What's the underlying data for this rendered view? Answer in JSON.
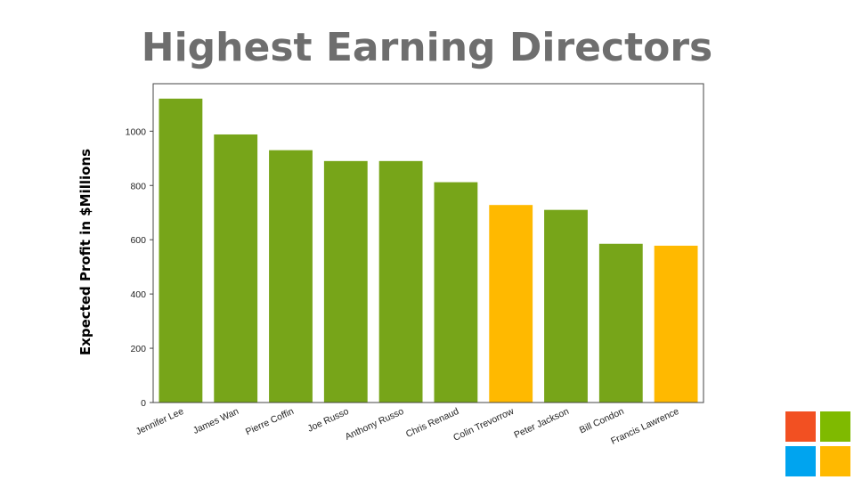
{
  "chart_data": {
    "type": "bar",
    "title": "Highest Earning Directors",
    "xlabel": "",
    "ylabel": "Expected Profit in $Millions",
    "ylim": [
      0,
      1175
    ],
    "yticks": [
      0,
      200,
      400,
      600,
      800,
      1000
    ],
    "grid": false,
    "categories": [
      "Jennifer Lee",
      "James Wan",
      "Pierre Coffin",
      "Joe Russo",
      "Anthony Russo",
      "Chris Renaud",
      "Colin Trevorrow",
      "Peter Jackson",
      "Bill Condon",
      "Francis Lawrence"
    ],
    "values": [
      1120,
      988,
      930,
      890,
      890,
      812,
      728,
      710,
      585,
      578
    ],
    "highlighted": [
      "Colin Trevorrow",
      "Francis Lawrence"
    ],
    "colors": {
      "default": "#77a519",
      "highlight": "#ffb900"
    }
  },
  "logo": {
    "colors": [
      "#f25022",
      "#7fba00",
      "#00a4ef",
      "#ffb900"
    ]
  }
}
